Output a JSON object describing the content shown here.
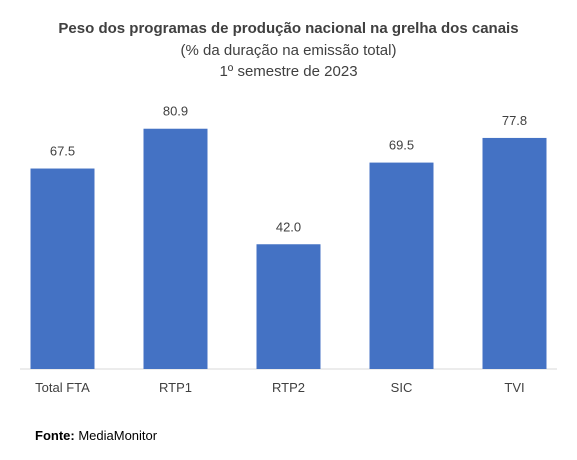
{
  "chart_data": {
    "type": "bar",
    "title": "Peso dos programas de produção nacional na grelha dos canais",
    "subtitle_lines": [
      "(% da duração na emissão total)",
      "1º semestre de 2023"
    ],
    "categories": [
      "Total FTA",
      "RTP1",
      "RTP2",
      "SIC",
      "TVI"
    ],
    "values": [
      67.5,
      80.9,
      42.0,
      69.5,
      77.8
    ],
    "value_labels": [
      "67.5",
      "80.9",
      "42.0",
      "69.5",
      "77.8"
    ],
    "xlabel": "",
    "ylabel": "",
    "ylim": [
      0,
      100
    ],
    "grid": false,
    "legend": "none",
    "bar_color": "#4472C4"
  },
  "source": {
    "label": "Fonte:",
    "text": "MediaMonitor"
  }
}
